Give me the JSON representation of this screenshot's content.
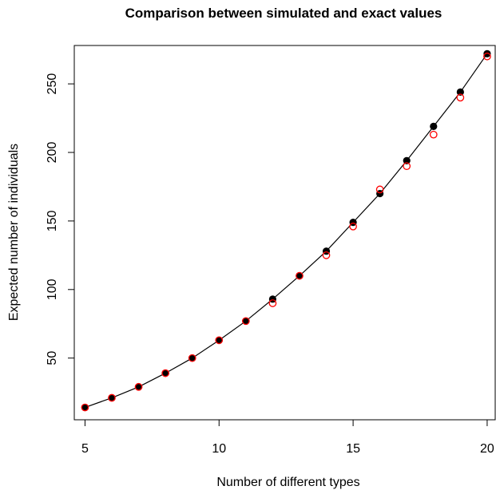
{
  "chart_data": {
    "type": "scatter",
    "title": "Comparison between simulated and exact values",
    "xlabel": "Number of different types",
    "ylabel": "Expected number of individuals",
    "xlim": [
      4.6,
      20.3
    ],
    "ylim": [
      5,
      278
    ],
    "xticks": [
      5,
      10,
      15,
      20
    ],
    "yticks": [
      50,
      100,
      150,
      200,
      250
    ],
    "grid": false,
    "legend": "none",
    "series": [
      {
        "style": "filled-points-with-line",
        "color": "#000000",
        "x": [
          5,
          6,
          7,
          8,
          9,
          10,
          11,
          12,
          13,
          14,
          15,
          16,
          17,
          18,
          19,
          20
        ],
        "y": [
          14,
          21,
          29,
          39,
          50,
          63,
          77,
          93,
          110,
          128,
          149,
          170,
          194,
          219,
          244,
          272
        ]
      },
      {
        "style": "open-circles",
        "color": "#ff0000",
        "x": [
          5,
          6,
          7,
          8,
          9,
          10,
          11,
          12,
          13,
          14,
          15,
          16,
          17,
          18,
          19,
          20
        ],
        "y": [
          14,
          21,
          29,
          39,
          50,
          63,
          77,
          90,
          110,
          125,
          146,
          173,
          190,
          213,
          240,
          270
        ]
      }
    ]
  }
}
